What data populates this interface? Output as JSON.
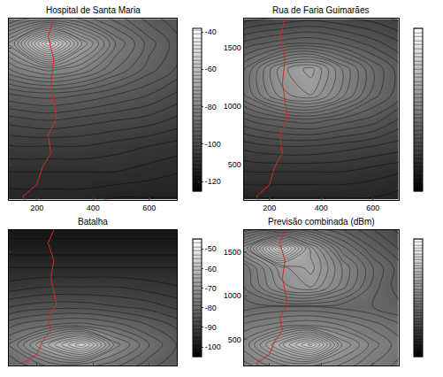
{
  "chart_data": [
    {
      "type": "contour",
      "title": "Hospital de Santa Maria",
      "xlim": [
        100,
        700
      ],
      "ylim": [
        200,
        1750
      ],
      "xticks": [
        200,
        400,
        600
      ],
      "yticks": [
        500,
        1000,
        1500
      ],
      "tick_labels": "x",
      "cells": {
        "x": [
          0,
          120,
          240,
          360,
          480,
          600,
          720
        ],
        "y": [
          0,
          220,
          440,
          660,
          880,
          1100,
          1320,
          1540,
          1760
        ],
        "z": [
          [
            -116,
            -115,
            -115,
            -115,
            -115,
            -116,
            -116
          ],
          [
            -113,
            -112,
            -112,
            -112,
            -113,
            -113,
            -113
          ],
          [
            -109,
            -109,
            -109,
            -109,
            -109,
            -110,
            -111
          ],
          [
            -106,
            -105,
            -105,
            -105,
            -106,
            -107,
            -108
          ],
          [
            -101,
            -100,
            -99,
            -100,
            -101,
            -102,
            -104
          ],
          [
            -95,
            -93,
            -92,
            -93,
            -95,
            -97,
            -100
          ],
          [
            -88,
            -82,
            -78,
            -81,
            -87,
            -92,
            -96
          ],
          [
            -84,
            -73,
            -53,
            -71,
            -83,
            -90,
            -95
          ],
          [
            -90,
            -87,
            -85,
            -86,
            -90,
            -94,
            -97
          ]
        ]
      },
      "zlim": [
        -125,
        -38
      ],
      "zticks": [
        -40,
        -60,
        -80,
        -100,
        -120
      ],
      "route": {
        "color": "#d62728",
        "x": [
          120,
          170,
          150,
          200,
          220,
          250,
          240,
          270,
          260,
          250,
          260,
          240,
          260
        ],
        "y": [
          0,
          120,
          230,
          330,
          480,
          600,
          750,
          900,
          1050,
          1200,
          1400,
          1600,
          1750
        ]
      }
    },
    {
      "type": "contour",
      "title": "Rua de Faria Guimarães",
      "xlim": [
        100,
        700
      ],
      "ylim": [
        200,
        1750
      ],
      "xticks": [
        200,
        400,
        600
      ],
      "yticks": [
        500,
        1000,
        1500
      ],
      "tick_labels": true,
      "cells": {
        "x": [
          0,
          120,
          240,
          360,
          480,
          600,
          720
        ],
        "y": [
          0,
          220,
          440,
          660,
          880,
          1100,
          1320,
          1540,
          1760
        ],
        "z": [
          [
            -112,
            -112,
            -111,
            -111,
            -111,
            -112,
            -112
          ],
          [
            -109,
            -108,
            -108,
            -108,
            -108,
            -108,
            -109
          ],
          [
            -105,
            -104,
            -104,
            -104,
            -104,
            -105,
            -106
          ],
          [
            -101,
            -99,
            -98,
            -98,
            -99,
            -100,
            -101
          ],
          [
            -95,
            -92,
            -90,
            -89,
            -91,
            -93,
            -97
          ],
          [
            -90,
            -83,
            -75,
            -72,
            -79,
            -87,
            -92
          ],
          [
            -90,
            -83,
            -73,
            -69,
            -78,
            -86,
            -92
          ],
          [
            -95,
            -91,
            -89,
            -88,
            -90,
            -93,
            -96
          ],
          [
            -100,
            -99,
            -98,
            -97,
            -98,
            -99,
            -101
          ]
        ]
      },
      "zlim": [
        -120,
        -40
      ],
      "zticks": [],
      "route": {
        "color": "#d62728",
        "x": [
          120,
          170,
          150,
          200,
          220,
          250,
          240,
          270,
          260,
          250,
          260,
          240,
          260
        ],
        "y": [
          0,
          120,
          230,
          330,
          480,
          600,
          750,
          900,
          1050,
          1200,
          1400,
          1600,
          1750
        ]
      }
    },
    {
      "type": "contour",
      "title": "Batalha",
      "xlim": [
        100,
        700
      ],
      "ylim": [
        200,
        1750
      ],
      "xticks": [
        200,
        400,
        600
      ],
      "yticks": [
        500,
        1000,
        1500
      ],
      "tick_labels": false,
      "cells": {
        "x": [
          0,
          120,
          240,
          360,
          480,
          600,
          720
        ],
        "y": [
          0,
          220,
          440,
          660,
          880,
          1100,
          1320,
          1540,
          1760
        ],
        "z": [
          [
            -88,
            -86,
            -85,
            -84,
            -85,
            -87,
            -89
          ],
          [
            -83,
            -80,
            -76,
            -75,
            -78,
            -82,
            -85
          ],
          [
            -82,
            -76,
            -65,
            -55,
            -72,
            -79,
            -84
          ],
          [
            -85,
            -81,
            -79,
            -78,
            -80,
            -83,
            -86
          ],
          [
            -89,
            -87,
            -86,
            -86,
            -87,
            -88,
            -90
          ],
          [
            -93,
            -92,
            -91,
            -91,
            -91,
            -92,
            -93
          ],
          [
            -95,
            -95,
            -95,
            -95,
            -95,
            -95,
            -95
          ],
          [
            -98,
            -98,
            -98,
            -98,
            -98,
            -98,
            -98
          ],
          [
            -100,
            -100,
            -100,
            -100,
            -100,
            -100,
            -100
          ]
        ]
      },
      "zlim": [
        -105,
        -45
      ],
      "zticks": [
        -50,
        -60,
        -70,
        -80,
        -90,
        -100
      ],
      "route": {
        "color": "#d62728",
        "x": [
          120,
          170,
          150,
          200,
          220,
          250,
          240,
          270,
          260,
          250,
          260,
          240,
          260
        ],
        "y": [
          0,
          120,
          230,
          330,
          480,
          600,
          750,
          900,
          1050,
          1200,
          1400,
          1600,
          1750
        ]
      }
    },
    {
      "type": "contour",
      "title": "Previsão combinada (dBm)",
      "xlim": [
        100,
        700
      ],
      "ylim": [
        200,
        1750
      ],
      "xticks": [
        200,
        400,
        600
      ],
      "yticks": [
        500,
        1000,
        1500
      ],
      "tick_labels": "y",
      "cells": {
        "x": [
          0,
          120,
          240,
          360,
          480,
          600,
          720
        ],
        "y": [
          0,
          220,
          440,
          660,
          880,
          1100,
          1320,
          1540,
          1760
        ],
        "z": [
          [
            -88,
            -86,
            -85,
            -84,
            -85,
            -87,
            -89
          ],
          [
            -83,
            -80,
            -76,
            -75,
            -78,
            -82,
            -85
          ],
          [
            -82,
            -76,
            -65,
            -55,
            -72,
            -79,
            -84
          ],
          [
            -85,
            -81,
            -79,
            -78,
            -80,
            -83,
            -86
          ],
          [
            -89,
            -87,
            -86,
            -86,
            -87,
            -88,
            -90
          ],
          [
            -90,
            -83,
            -75,
            -72,
            -79,
            -87,
            -92
          ],
          [
            -88,
            -82,
            -73,
            -69,
            -78,
            -86,
            -92
          ],
          [
            -84,
            -73,
            -53,
            -71,
            -83,
            -90,
            -95
          ],
          [
            -90,
            -87,
            -85,
            -86,
            -90,
            -94,
            -97
          ]
        ]
      },
      "zlim": [
        -120,
        -40
      ],
      "zticks": [],
      "route": {
        "color": "#d62728",
        "x": [
          120,
          170,
          150,
          200,
          220,
          250,
          240,
          270,
          260,
          250,
          260,
          240,
          260
        ],
        "y": [
          0,
          120,
          230,
          330,
          480,
          600,
          750,
          900,
          1050,
          1200,
          1400,
          1600,
          1750
        ]
      }
    }
  ]
}
